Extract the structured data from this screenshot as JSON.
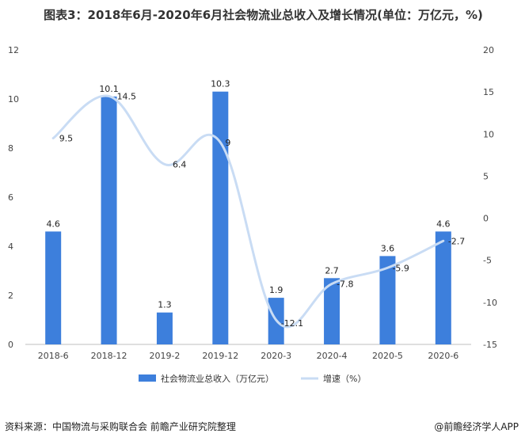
{
  "title": "图表3：2018年6月-2020年6月社会物流业总收入及增长情况(单位：万亿元，%)",
  "footer": {
    "source": "资料来源：中国物流与采购联合会 前瞻产业研究院整理",
    "brand": "@前瞻经济学人APP"
  },
  "chart_data": {
    "type": "bar",
    "categories": [
      "2018-6",
      "2018-12",
      "2019-2",
      "2019-12",
      "2020-3",
      "2020-4",
      "2020-5",
      "2020-6"
    ],
    "series": [
      {
        "name": "社会物流业总收入（万亿元）",
        "type": "bar",
        "axis": "left",
        "values": [
          4.6,
          10.1,
          1.3,
          10.3,
          1.9,
          2.7,
          3.6,
          4.6
        ],
        "color": "#3d7fdc"
      },
      {
        "name": "增速（%）",
        "type": "line",
        "axis": "right",
        "values": [
          9.5,
          14.5,
          6.4,
          9,
          -12.1,
          -7.8,
          -5.9,
          -2.7
        ],
        "color": "#c9dcf4"
      }
    ],
    "yleft": {
      "range": [
        0,
        12
      ],
      "ticks": [
        0,
        2,
        4,
        6,
        8,
        10,
        12
      ]
    },
    "yright": {
      "range": [
        -15,
        20
      ],
      "ticks": [
        -15,
        -10,
        -5,
        0,
        5,
        10,
        15,
        20
      ]
    },
    "grid": false,
    "legend": "bottom"
  }
}
